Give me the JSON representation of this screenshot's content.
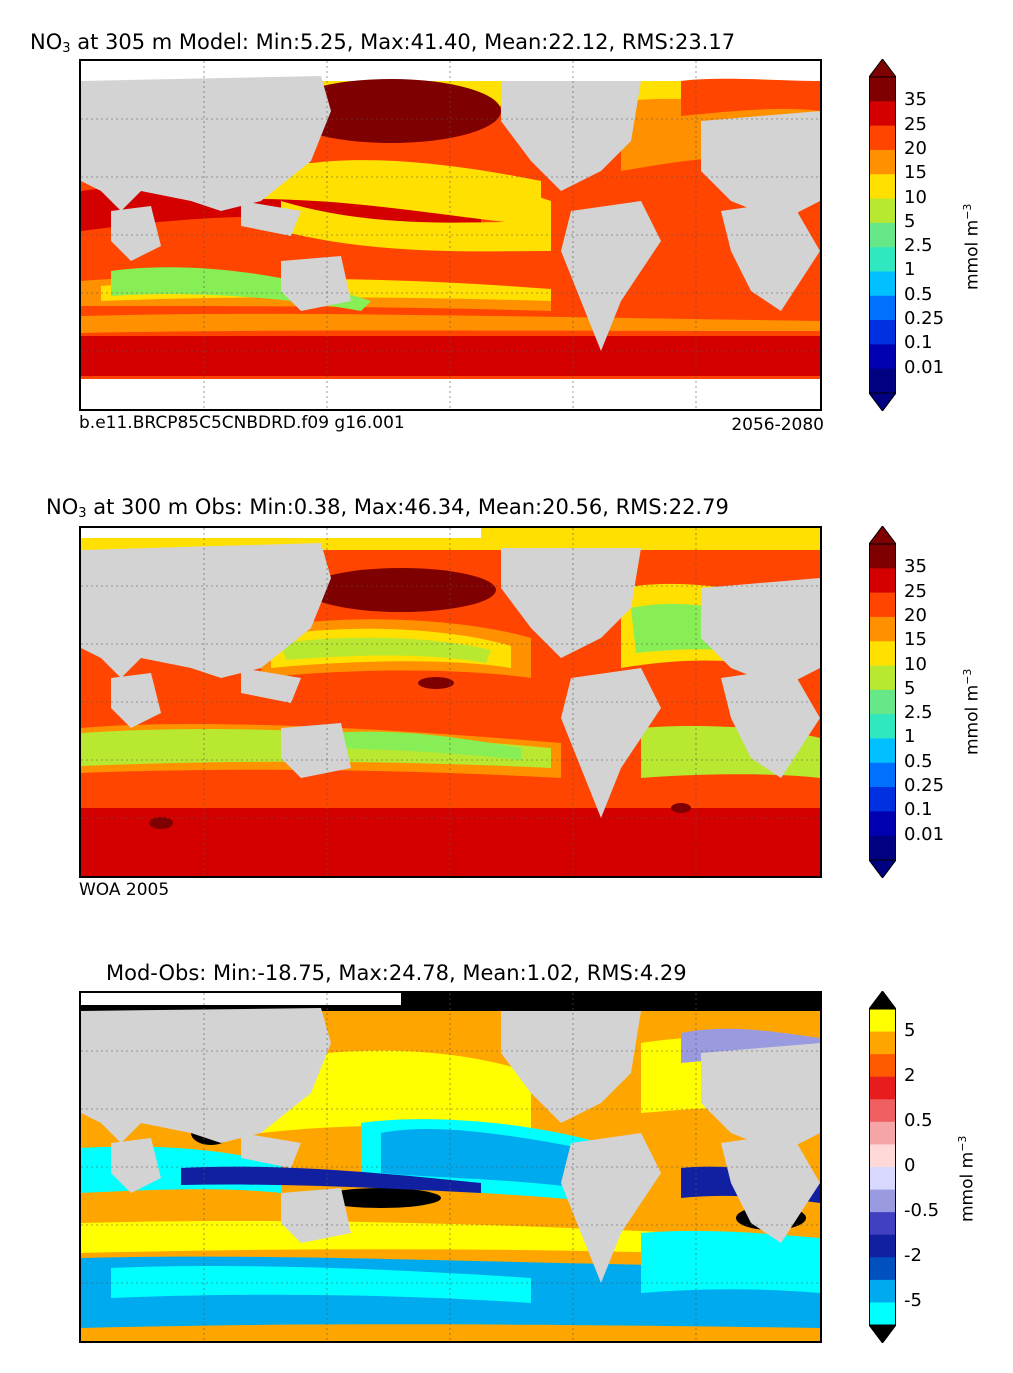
{
  "panels": [
    {
      "id": "model",
      "title_pre": "NO",
      "title_sub": "3",
      "title_post": " at 305 m Model: Min:5.25, Max:41.40, Mean:22.12, RMS:23.17",
      "caption_left": "b.e11.BRCP85C5CNBDRD.f09 g16.001",
      "caption_right": "2056-2080",
      "colorbar": {
        "labels": [
          "35",
          "25",
          "20",
          "15",
          "10",
          "5",
          "2.5",
          "1",
          "0.5",
          "0.25",
          "0.1",
          "0.01"
        ],
        "colors": [
          "#7f0000",
          "#d40000",
          "#ff4500",
          "#ff9000",
          "#ffe000",
          "#b8e830",
          "#66e888",
          "#30e8c0",
          "#00c0ff",
          "#0070ff",
          "#0030e0",
          "#0000b0",
          "#000080"
        ],
        "unit": "mmol m",
        "unit_sup": "−3"
      }
    },
    {
      "id": "obs",
      "title_pre": "NO",
      "title_sub": "3",
      "title_post": " at 300 m Obs: Min:0.38, Max:46.34, Mean:20.56, RMS:22.79",
      "caption_left": "WOA 2005",
      "caption_right": "",
      "colorbar": {
        "labels": [
          "35",
          "25",
          "20",
          "15",
          "10",
          "5",
          "2.5",
          "1",
          "0.5",
          "0.25",
          "0.1",
          "0.01"
        ],
        "colors": [
          "#7f0000",
          "#d40000",
          "#ff4500",
          "#ff9000",
          "#ffe000",
          "#b8e830",
          "#66e888",
          "#30e8c0",
          "#00c0ff",
          "#0070ff",
          "#0030e0",
          "#0000b0",
          "#000080"
        ],
        "unit": "mmol m",
        "unit_sup": "−3"
      }
    },
    {
      "id": "diff",
      "title_pre": "Mod-Obs: Min:-18.75, Max:24.78, Mean:1.02, RMS:4.29",
      "title_sub": "",
      "title_post": "",
      "caption_left": "",
      "caption_right": "",
      "colorbar": {
        "labels": [
          "5",
          "2",
          "0.5",
          "0",
          "-0.5",
          "-2",
          "-5"
        ],
        "colors": [
          "#ffff00",
          "#ffa500",
          "#ff5a00",
          "#e81c1c",
          "#f06060",
          "#f5a5a5",
          "#ffd8d8",
          "#d8d8ff",
          "#9a9ae0",
          "#4040c0",
          "#1020a0",
          "#0050c0",
          "#00aaee",
          "#00ffff"
        ],
        "unit": "mmol m",
        "unit_sup": "−3"
      }
    }
  ]
}
